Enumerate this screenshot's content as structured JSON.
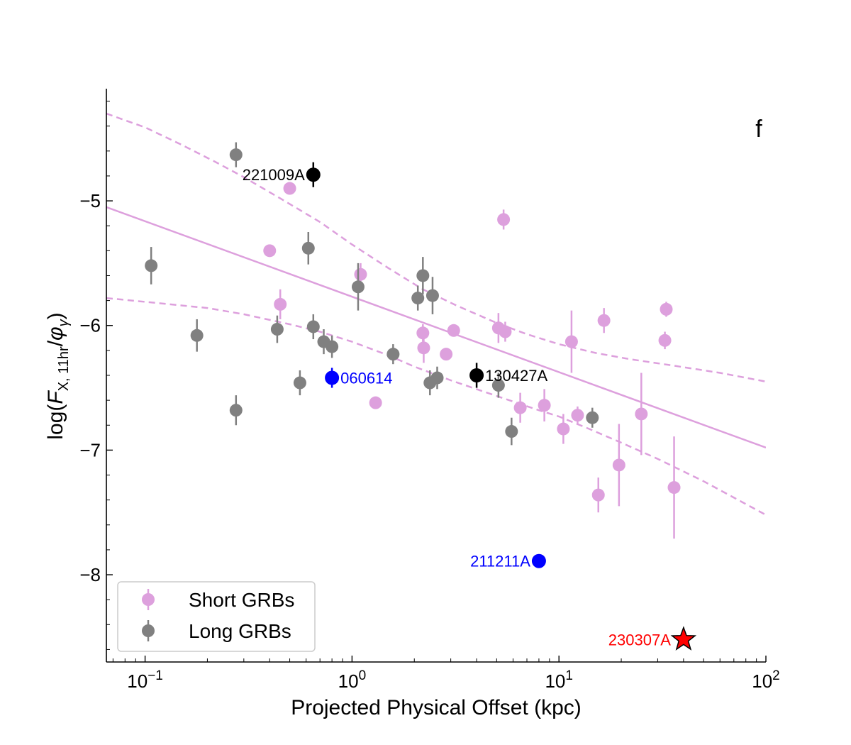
{
  "chart_data": {
    "type": "scatter",
    "panel_label": "f",
    "xlabel": "Projected Physical Offset (kpc)",
    "ylabel_parts": {
      "prefix": "log(",
      "F": "F",
      "sub": "X, 11hr",
      "slash": "/",
      "phi": "φ",
      "phi_sub": "γ",
      "suffix": ")"
    },
    "x_scale": "log",
    "xlim": [
      0.065,
      100
    ],
    "ylim": [
      -8.7,
      -4.1
    ],
    "x_major_ticks": [
      {
        "value": 0.1,
        "base": "10",
        "exp": "−1"
      },
      {
        "value": 1,
        "base": "10",
        "exp": "0"
      },
      {
        "value": 10,
        "base": "10",
        "exp": "1"
      },
      {
        "value": 100,
        "base": "10",
        "exp": "2"
      }
    ],
    "y_major_ticks": [
      {
        "value": -5,
        "label": "−5"
      },
      {
        "value": -6,
        "label": "−6"
      },
      {
        "value": -7,
        "label": "−7"
      },
      {
        "value": -8,
        "label": "−8"
      }
    ],
    "colors": {
      "short": "#dda0dd",
      "long": "#808080",
      "black": "#000000",
      "blue": "#0000ff",
      "red": "#ff0000"
    },
    "legend": {
      "position": "lower-left",
      "entries": [
        {
          "label": "Short GRBs",
          "series": "short"
        },
        {
          "label": "Long GRBs",
          "series": "long"
        }
      ]
    },
    "series": [
      {
        "name": "Short GRBs",
        "key": "short",
        "points": [
          {
            "x": 0.4,
            "y": -5.4,
            "err": 0.0
          },
          {
            "x": 0.45,
            "y": -5.83,
            "err": 0.12
          },
          {
            "x": 0.5,
            "y": -4.9,
            "err": 0.0
          },
          {
            "x": 1.1,
            "y": -5.59,
            "err": 0.09
          },
          {
            "x": 1.3,
            "y": -6.62,
            "err": 0.0
          },
          {
            "x": 2.2,
            "y": -6.06,
            "err": 0.07
          },
          {
            "x": 2.22,
            "y": -6.18,
            "err": 0.12
          },
          {
            "x": 2.85,
            "y": -6.23,
            "err": 0.0
          },
          {
            "x": 3.1,
            "y": -6.04,
            "err": 0.0
          },
          {
            "x": 5.1,
            "y": -6.02,
            "err": 0.12
          },
          {
            "x": 5.4,
            "y": -5.15,
            "err": 0.08
          },
          {
            "x": 5.5,
            "y": -6.05,
            "err": 0.08
          },
          {
            "x": 6.5,
            "y": -6.66,
            "err": 0.12
          },
          {
            "x": 8.5,
            "y": -6.64,
            "err": 0.13
          },
          {
            "x": 10.5,
            "y": -6.83,
            "err": 0.12
          },
          {
            "x": 11.5,
            "y": -6.13,
            "err": 0.25
          },
          {
            "x": 12.3,
            "y": -6.72,
            "err": 0.07
          },
          {
            "x": 15.5,
            "y": -7.36,
            "err": 0.14
          },
          {
            "x": 16.5,
            "y": -5.96,
            "err": 0.1
          },
          {
            "x": 19.5,
            "y": -7.12,
            "err": 0.33
          },
          {
            "x": 25,
            "y": -6.71,
            "err": 0.33
          },
          {
            "x": 32.5,
            "y": -6.12,
            "err": 0.07
          },
          {
            "x": 33,
            "y": -5.87,
            "err": 0.06
          },
          {
            "x": 36,
            "y": -7.3,
            "err": 0.41
          }
        ]
      },
      {
        "name": "Long GRBs",
        "key": "long",
        "points": [
          {
            "x": 0.107,
            "y": -5.52,
            "err": 0.15
          },
          {
            "x": 0.178,
            "y": -6.08,
            "err": 0.13
          },
          {
            "x": 0.275,
            "y": -4.63,
            "err": 0.1
          },
          {
            "x": 0.275,
            "y": -6.68,
            "err": 0.12
          },
          {
            "x": 0.435,
            "y": -6.03,
            "err": 0.11
          },
          {
            "x": 0.56,
            "y": -6.46,
            "err": 0.1
          },
          {
            "x": 0.615,
            "y": -5.38,
            "err": 0.13
          },
          {
            "x": 0.65,
            "y": -6.01,
            "err": 0.1
          },
          {
            "x": 0.73,
            "y": -6.13,
            "err": 0.1
          },
          {
            "x": 0.8,
            "y": -6.17,
            "err": 0.09
          },
          {
            "x": 1.07,
            "y": -5.69,
            "err": 0.19
          },
          {
            "x": 1.58,
            "y": -6.23,
            "err": 0.08
          },
          {
            "x": 2.08,
            "y": -5.78,
            "err": 0.1
          },
          {
            "x": 2.2,
            "y": -5.6,
            "err": 0.15
          },
          {
            "x": 2.38,
            "y": -6.46,
            "err": 0.1
          },
          {
            "x": 2.45,
            "y": -5.76,
            "err": 0.15
          },
          {
            "x": 2.58,
            "y": -6.42,
            "err": 0.09
          },
          {
            "x": 5.1,
            "y": -6.48,
            "err": 0.1
          },
          {
            "x": 5.9,
            "y": -6.85,
            "err": 0.11
          },
          {
            "x": 14.5,
            "y": -6.74,
            "err": 0.08
          }
        ]
      }
    ],
    "named_points": [
      {
        "name": "221009A",
        "x": 0.65,
        "y": -4.79,
        "err": 0.1,
        "color": "black",
        "label_side": "left",
        "marker": "circle"
      },
      {
        "name": "130427A",
        "x": 4.0,
        "y": -6.4,
        "err": 0.1,
        "color": "black",
        "label_side": "right",
        "marker": "circle"
      },
      {
        "name": "060614",
        "x": 0.8,
        "y": -6.42,
        "err": 0.08,
        "color": "blue",
        "label_side": "right",
        "marker": "circle"
      },
      {
        "name": "211211A",
        "x": 8.0,
        "y": -7.89,
        "err": 0.0,
        "color": "blue",
        "label_side": "left",
        "marker": "circle"
      },
      {
        "name": "230307A",
        "x": 40,
        "y": -8.52,
        "err": 0.0,
        "color": "red",
        "label_side": "left",
        "marker": "star"
      }
    ],
    "fit_line": {
      "x": [
        0.065,
        100
      ],
      "y": [
        -5.05,
        -6.98
      ]
    },
    "confidence_band": {
      "upper": {
        "x": [
          0.065,
          0.1,
          0.15,
          0.22,
          0.3,
          0.45,
          0.7,
          1.0,
          1.5,
          2.2,
          3.2,
          5.0,
          7.0,
          10,
          15,
          22,
          35,
          60,
          100
        ],
        "y": [
          -4.3,
          -4.41,
          -4.55,
          -4.69,
          -4.81,
          -4.98,
          -5.17,
          -5.35,
          -5.54,
          -5.71,
          -5.84,
          -5.98,
          -6.07,
          -6.15,
          -6.22,
          -6.27,
          -6.32,
          -6.38,
          -6.45
        ]
      },
      "lower": {
        "x": [
          0.065,
          0.1,
          0.2,
          0.3,
          0.5,
          0.7,
          1.0,
          1.5,
          2.0,
          3.0,
          4.5,
          6.0,
          8.0,
          10,
          14,
          20,
          30,
          50,
          100
        ],
        "y": [
          -5.78,
          -5.81,
          -5.86,
          -5.91,
          -5.99,
          -6.05,
          -6.13,
          -6.24,
          -6.33,
          -6.44,
          -6.54,
          -6.61,
          -6.68,
          -6.73,
          -6.83,
          -6.94,
          -7.07,
          -7.25,
          -7.52
        ]
      }
    }
  }
}
